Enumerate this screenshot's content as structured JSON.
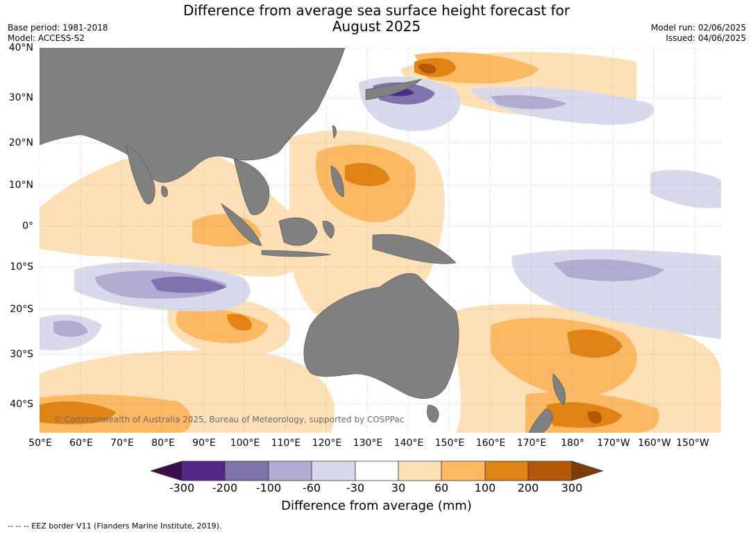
{
  "header": {
    "title_line1": "Difference from average sea surface height forecast for",
    "title_line2": "August 2025",
    "base_period": "Base period: 1981-2018",
    "model": "Model: ACCESS-S2",
    "model_run": "Model run: 02/06/2025",
    "issued": "Issued: 04/06/2025"
  },
  "map": {
    "lat_labels": [
      "40°N",
      "30°N",
      "20°N",
      "10°N",
      "0°",
      "10°S",
      "20°S",
      "30°S",
      "40°S"
    ],
    "lon_labels": [
      "50°E",
      "60°E",
      "70°E",
      "80°E",
      "90°E",
      "100°E",
      "110°E",
      "120°E",
      "130°E",
      "140°E",
      "150°E",
      "160°E",
      "170°E",
      "180°",
      "170°W",
      "160°W",
      "150°W"
    ],
    "copyright": "© Commonwealth of Australia 2025, Bureau of Meteorology, supported by COSPPac",
    "land_color": "#808080"
  },
  "colorbar": {
    "title": "Difference from average (mm)",
    "tick_labels": [
      "-300",
      "-200",
      "-100",
      "-60",
      "-30",
      "30",
      "60",
      "100",
      "200",
      "300"
    ],
    "colors": [
      "#3b0f4f",
      "#542788",
      "#8073ac",
      "#b2abd2",
      "#d8daeb",
      "#ffffff",
      "#fee0b6",
      "#fdb863",
      "#e08214",
      "#b35806",
      "#7f3b08"
    ]
  },
  "footer": {
    "legend_text": "--  --  -- EEZ border V11 (Flanders Marine Institute, 2019)."
  }
}
